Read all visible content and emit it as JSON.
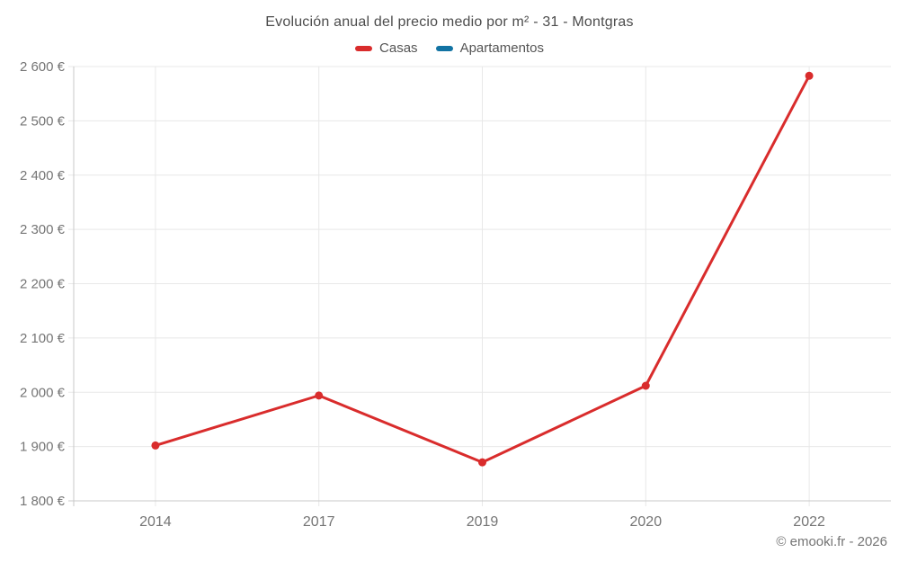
{
  "header": {
    "title": "Evolución anual del precio medio por m² - 31 - Montgras"
  },
  "legend": {
    "items": [
      {
        "label": "Casas",
        "color": "#d92c2c"
      },
      {
        "label": "Apartamentos",
        "color": "#1273a3"
      }
    ]
  },
  "footer": {
    "credit": "© emooki.fr - 2026"
  },
  "colors": {
    "casas_line": "#d92c2c",
    "apartamentos_swatch": "#1273a3",
    "gridline": "#e8e8e8",
    "axis_line": "#c9c9c9",
    "tick_label": "#757575",
    "title_text": "#4c4c4c",
    "background": "#ffffff"
  },
  "chart_data": {
    "type": "line",
    "title": "Evolución anual del precio medio por m² - 31 - Montgras",
    "xlabel": "",
    "ylabel": "",
    "categories": [
      "2014",
      "2017",
      "2019",
      "2020",
      "2022"
    ],
    "series": [
      {
        "name": "Casas",
        "color": "#d92c2c",
        "values": [
          1902,
          1994,
          1871,
          2012,
          2583
        ]
      },
      {
        "name": "Apartamentos",
        "color": "#1273a3",
        "values": []
      }
    ],
    "ylim": [
      1800,
      2600
    ],
    "yticks": [
      1800,
      1900,
      2000,
      2100,
      2200,
      2300,
      2400,
      2500,
      2600
    ],
    "ytick_labels": [
      "1 800 €",
      "1 900 €",
      "2 000 €",
      "2 100 €",
      "2 200 €",
      "2 300 €",
      "2 400 €",
      "2 500 €",
      "2 600 €"
    ],
    "grid": true,
    "legend_position": "top"
  }
}
